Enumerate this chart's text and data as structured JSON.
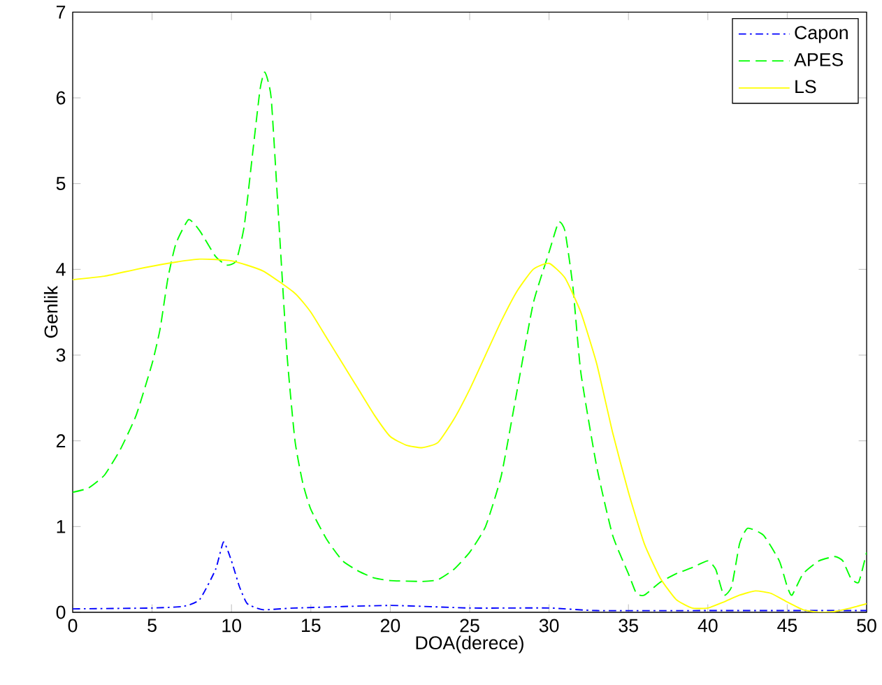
{
  "chart_data": {
    "type": "line",
    "xlabel": "DOA(derece)",
    "ylabel": "Genlik",
    "xlim": [
      0,
      50
    ],
    "ylim": [
      0,
      7
    ],
    "xticks": [
      0,
      5,
      10,
      15,
      20,
      25,
      30,
      35,
      40,
      45,
      50
    ],
    "yticks": [
      0,
      1,
      2,
      3,
      4,
      5,
      6,
      7
    ],
    "legend": "top right",
    "grid": false,
    "series": [
      {
        "name": "Capon",
        "color": "#0000ff",
        "line_style": "dashdot",
        "x": [
          0,
          5,
          7,
          8,
          9,
          9.5,
          10,
          10.5,
          11,
          12,
          14,
          20,
          25,
          30,
          33,
          40,
          50
        ],
        "values": [
          0.04,
          0.05,
          0.07,
          0.15,
          0.5,
          0.82,
          0.6,
          0.3,
          0.1,
          0.03,
          0.05,
          0.08,
          0.05,
          0.05,
          0.02,
          0.02,
          0.02
        ]
      },
      {
        "name": "APES",
        "color": "#00ff00",
        "line_style": "dashed",
        "x": [
          0,
          1,
          2,
          3,
          4,
          5,
          5.5,
          6,
          6.5,
          7.3,
          8,
          9,
          9.7,
          10.3,
          10.8,
          11.3,
          11.8,
          12.1,
          12.5,
          13,
          13.5,
          14,
          14.5,
          15,
          16,
          17,
          18,
          19,
          20,
          22,
          23,
          24,
          25,
          26,
          27,
          28,
          29,
          30,
          30.6,
          31,
          31.5,
          32,
          33,
          34,
          35,
          35.5,
          36,
          37,
          38,
          39,
          40,
          40.5,
          41,
          41.5,
          42,
          42.5,
          43.5,
          44.5,
          45,
          45.3,
          46,
          47,
          48,
          48.5,
          49,
          49.5,
          50
        ],
        "values": [
          1.4,
          1.45,
          1.6,
          1.9,
          2.3,
          2.9,
          3.3,
          3.9,
          4.3,
          4.58,
          4.45,
          4.15,
          4.05,
          4.1,
          4.5,
          5.3,
          6.1,
          6.3,
          6.0,
          4.5,
          3.0,
          2.0,
          1.5,
          1.2,
          0.85,
          0.6,
          0.48,
          0.4,
          0.37,
          0.36,
          0.38,
          0.5,
          0.7,
          1.0,
          1.6,
          2.6,
          3.6,
          4.2,
          4.55,
          4.45,
          3.8,
          2.8,
          1.7,
          0.9,
          0.45,
          0.22,
          0.2,
          0.35,
          0.45,
          0.52,
          0.6,
          0.5,
          0.2,
          0.3,
          0.8,
          0.98,
          0.9,
          0.6,
          0.3,
          0.2,
          0.45,
          0.6,
          0.65,
          0.6,
          0.4,
          0.35,
          0.7
        ]
      },
      {
        "name": "LS",
        "color": "#ffff00",
        "line_style": "solid",
        "x": [
          0,
          2,
          4,
          6,
          8,
          10,
          12,
          14,
          15,
          16,
          17,
          18,
          19,
          20,
          21,
          22,
          23,
          24,
          25,
          26,
          27,
          28,
          29,
          30,
          31,
          32,
          33,
          34,
          35,
          36,
          37,
          38,
          39,
          40,
          41,
          42,
          43,
          44,
          45,
          46,
          47,
          48,
          49,
          50
        ],
        "values": [
          3.88,
          3.92,
          4.0,
          4.07,
          4.12,
          4.1,
          3.98,
          3.72,
          3.5,
          3.2,
          2.9,
          2.6,
          2.3,
          2.05,
          1.95,
          1.92,
          1.98,
          2.25,
          2.6,
          3.0,
          3.4,
          3.75,
          4.0,
          4.07,
          3.9,
          3.5,
          2.9,
          2.1,
          1.4,
          0.8,
          0.4,
          0.15,
          0.05,
          0.05,
          0.12,
          0.2,
          0.25,
          0.22,
          0.12,
          0.03,
          0.0,
          0.01,
          0.05,
          0.1
        ]
      }
    ]
  }
}
